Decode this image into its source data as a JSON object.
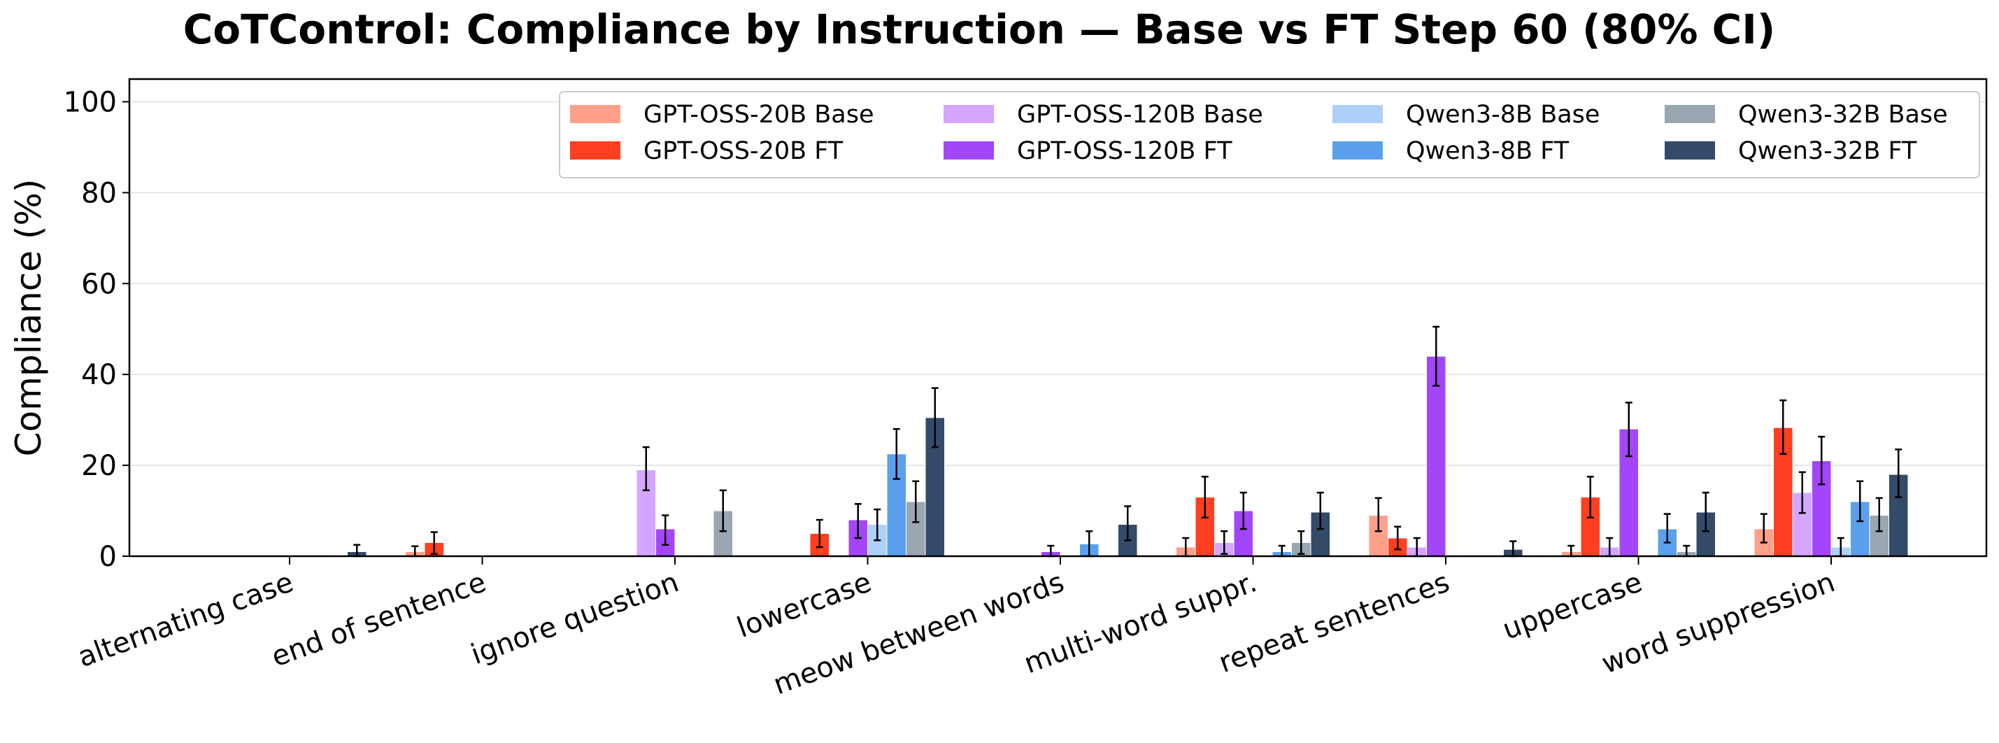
{
  "chart_data": {
    "type": "bar",
    "title": "CoTControl: Compliance by Instruction — Base vs FT Step 60 (80% CI)",
    "xlabel": "",
    "ylabel": "Compliance (%)",
    "ylim": [
      0,
      105
    ],
    "yticks": [
      0,
      20,
      40,
      60,
      80,
      100
    ],
    "grid": "horizontal",
    "legend_position": "top-right",
    "categories": [
      "alternating case",
      "end of sentence",
      "ignore question",
      "lowercase",
      "meow between words",
      "multi-word suppr.",
      "repeat sentences",
      "uppercase",
      "word suppression"
    ],
    "series": [
      {
        "name": "GPT-OSS-20B Base",
        "color": "#FFA08A",
        "values": [
          0,
          1,
          0,
          0,
          0,
          2,
          9,
          1,
          6
        ],
        "ci": [
          null,
          [
            0,
            2.2
          ],
          null,
          null,
          null,
          [
            0,
            4
          ],
          [
            5.5,
            12.8
          ],
          [
            0,
            2.3
          ],
          [
            3,
            9.3
          ]
        ]
      },
      {
        "name": "GPT-OSS-20B FT",
        "color": "#FF3F1F",
        "values": [
          0,
          3,
          0,
          5,
          0,
          13,
          4,
          13,
          28.3
        ],
        "ci": [
          null,
          [
            0.5,
            5.3
          ],
          null,
          [
            2,
            8
          ],
          null,
          [
            8.5,
            17.5
          ],
          [
            1.5,
            6.5
          ],
          [
            8.5,
            17.5
          ],
          [
            22.5,
            34.3
          ]
        ]
      },
      {
        "name": "GPT-OSS-120B Base",
        "color": "#D4A6FF",
        "values": [
          0,
          0,
          19,
          0,
          0,
          3,
          2,
          2,
          14
        ],
        "ci": [
          null,
          null,
          [
            14.5,
            24
          ],
          null,
          null,
          [
            0.5,
            5.5
          ],
          [
            0,
            4
          ],
          [
            0,
            4
          ],
          [
            9.5,
            18.5
          ]
        ]
      },
      {
        "name": "GPT-OSS-120B FT",
        "color": "#A346FA",
        "values": [
          0,
          0,
          6,
          8,
          1,
          10,
          44,
          28,
          21
        ],
        "ci": [
          null,
          null,
          [
            2.5,
            9
          ],
          [
            4,
            11.5
          ],
          [
            0,
            2.3
          ],
          [
            6,
            14
          ],
          [
            37.5,
            50.5
          ],
          [
            22,
            33.8
          ],
          [
            15.8,
            26.3
          ]
        ]
      },
      {
        "name": "Qwen3-8B Base",
        "color": "#AECFF7",
        "values": [
          0,
          0,
          0,
          7,
          0,
          0,
          0,
          0,
          2
        ],
        "ci": [
          null,
          null,
          null,
          [
            3.5,
            10.3
          ],
          null,
          null,
          null,
          null,
          [
            0,
            4
          ]
        ]
      },
      {
        "name": "Qwen3-8B FT",
        "color": "#5BA0EC",
        "values": [
          0,
          0,
          0,
          22.5,
          2.7,
          1,
          0,
          6,
          12
        ],
        "ci": [
          null,
          null,
          null,
          [
            17,
            28
          ],
          [
            0,
            5.5
          ],
          [
            0,
            2.3
          ],
          null,
          [
            3,
            9.3
          ],
          [
            7.7,
            16.5
          ]
        ]
      },
      {
        "name": "Qwen3-32B Base",
        "color": "#9AA6B2",
        "values": [
          0,
          0,
          10,
          12,
          0,
          3,
          0,
          1,
          9
        ],
        "ci": [
          null,
          null,
          [
            5.5,
            14.5
          ],
          [
            7.5,
            16.5
          ],
          null,
          [
            0.5,
            5.5
          ],
          null,
          [
            0,
            2.3
          ],
          [
            5.5,
            12.8
          ]
        ]
      },
      {
        "name": "Qwen3-32B FT",
        "color": "#334A69",
        "values": [
          1,
          0,
          0,
          30.5,
          7,
          9.7,
          1.5,
          9.7,
          18
        ],
        "ci": [
          [
            0,
            2.5
          ],
          null,
          null,
          [
            24,
            37
          ],
          [
            3.5,
            11
          ],
          [
            6,
            14
          ],
          [
            0,
            3.3
          ],
          [
            5.5,
            14
          ],
          [
            13,
            23.5
          ]
        ]
      }
    ]
  }
}
